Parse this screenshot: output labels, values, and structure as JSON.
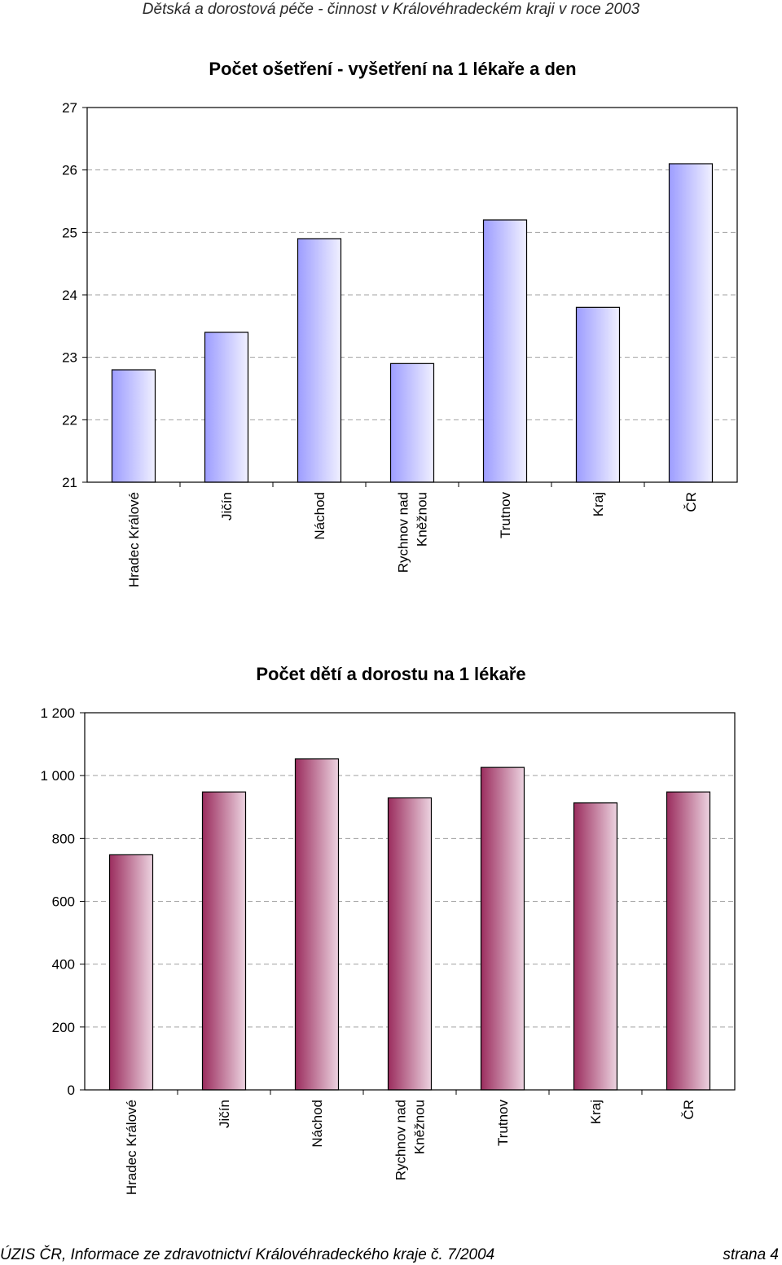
{
  "header": {
    "text": "Dětská a dorostová péče - činnost v Královéhradeckém kraji v roce 2003"
  },
  "footer": {
    "left": "ÚZIS ČR, Informace ze zdravotnictví Královéhradeckého kraje č. 7/2004",
    "right": "strana 4"
  },
  "colors": {
    "series1_dark": "#9d9dff",
    "series1_light": "#f0f0ff",
    "series2_dark": "#9b2d5e",
    "series2_light": "#ecd3e0",
    "grid": "#a0a0a0"
  },
  "chart_data": [
    {
      "type": "bar",
      "title": "Počet ošetření - vyšetření na 1 lékaře a den",
      "categories": [
        [
          "Hradec Králové"
        ],
        [
          "Jičín"
        ],
        [
          "Náchod"
        ],
        [
          "Rychnov nad",
          "Kněžnou"
        ],
        [
          "Trutnov"
        ],
        [
          "Kraj"
        ],
        [
          "ČR"
        ]
      ],
      "values": [
        22.8,
        23.4,
        24.9,
        22.9,
        25.2,
        23.8,
        26.1
      ],
      "ylim": [
        21,
        27
      ],
      "yticks": [
        21,
        22,
        23,
        24,
        25,
        26,
        27
      ],
      "ytick_labels": [
        "21",
        "22",
        "23",
        "24",
        "25",
        "26",
        "27"
      ],
      "grid": true,
      "xlabel": "",
      "ylabel": ""
    },
    {
      "type": "bar",
      "title": "Počet dětí a dorostu na 1 lékaře",
      "categories": [
        [
          "Hradec Králové"
        ],
        [
          "Jičín"
        ],
        [
          "Náchod"
        ],
        [
          "Rychnov nad",
          "Kněžnou"
        ],
        [
          "Trutnov"
        ],
        [
          "Kraj"
        ],
        [
          "ČR"
        ]
      ],
      "values": [
        748,
        948,
        1053,
        929,
        1026,
        913,
        948
      ],
      "ylim": [
        0,
        1200
      ],
      "yticks": [
        0,
        200,
        400,
        600,
        800,
        1000,
        1200
      ],
      "ytick_labels": [
        "0",
        "200",
        "400",
        "600",
        "800",
        "1 000",
        "1 200"
      ],
      "grid": true,
      "xlabel": "",
      "ylabel": ""
    }
  ]
}
